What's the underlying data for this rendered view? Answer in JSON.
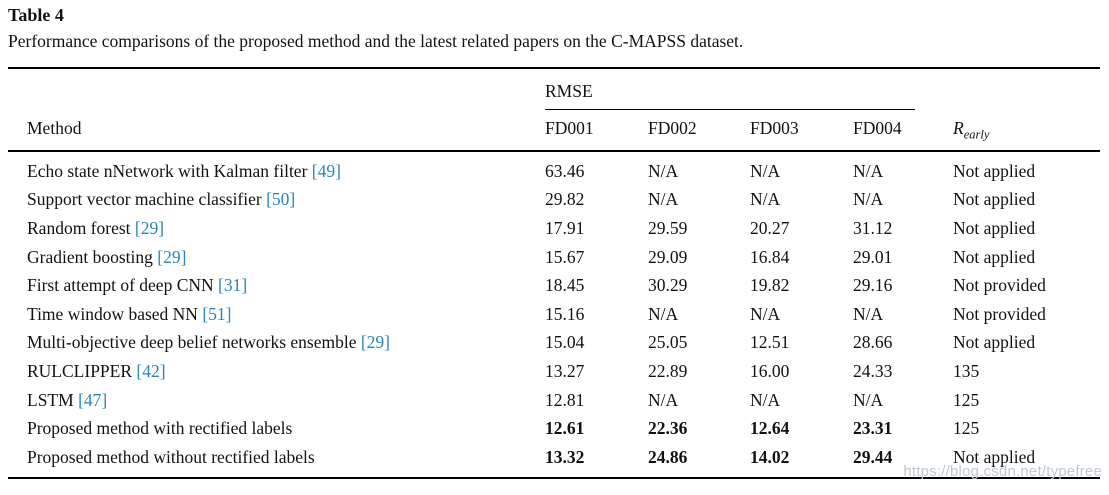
{
  "header": {
    "table_label": "Table 4",
    "caption": "Performance comparisons of the proposed method and the latest related papers on the C-MAPSS dataset."
  },
  "table": {
    "group_header": "RMSE",
    "method_header": "Method",
    "sub_headers": [
      "FD001",
      "FD002",
      "FD003",
      "FD004"
    ],
    "r_early_header": {
      "base": "R",
      "sub": "early"
    },
    "rows": [
      {
        "method": "Echo state nNetwork with Kalman filter",
        "ref": "[49]",
        "values": [
          "63.46",
          "N/A",
          "N/A",
          "N/A"
        ],
        "r_early": "Not applied",
        "bold": false
      },
      {
        "method": "Support vector machine classifier",
        "ref": "[50]",
        "values": [
          "29.82",
          "N/A",
          "N/A",
          "N/A"
        ],
        "r_early": "Not applied",
        "bold": false
      },
      {
        "method": "Random forest",
        "ref": "[29]",
        "values": [
          "17.91",
          "29.59",
          "20.27",
          "31.12"
        ],
        "r_early": "Not applied",
        "bold": false
      },
      {
        "method": "Gradient boosting",
        "ref": "[29]",
        "values": [
          "15.67",
          "29.09",
          "16.84",
          "29.01"
        ],
        "r_early": "Not applied",
        "bold": false
      },
      {
        "method": "First attempt of deep CNN",
        "ref": "[31]",
        "values": [
          "18.45",
          "30.29",
          "19.82",
          "29.16"
        ],
        "r_early": "Not provided",
        "bold": false
      },
      {
        "method": "Time window based NN",
        "ref": "[51]",
        "values": [
          "15.16",
          "N/A",
          "N/A",
          "N/A"
        ],
        "r_early": "Not provided",
        "bold": false
      },
      {
        "method": "Multi-objective deep belief networks ensemble",
        "ref": "[29]",
        "values": [
          "15.04",
          "25.05",
          "12.51",
          "28.66"
        ],
        "r_early": "Not applied",
        "bold": false
      },
      {
        "method": "RULCLIPPER",
        "ref": "[42]",
        "values": [
          "13.27",
          "22.89",
          "16.00",
          "24.33"
        ],
        "r_early": "135",
        "bold": false
      },
      {
        "method": "LSTM",
        "ref": "[47]",
        "values": [
          "12.81",
          "N/A",
          "N/A",
          "N/A"
        ],
        "r_early": "125",
        "bold": false
      },
      {
        "method": "Proposed method with rectified labels",
        "ref": "",
        "values": [
          "12.61",
          "22.36",
          "12.64",
          "23.31"
        ],
        "r_early": "125",
        "bold": true
      },
      {
        "method": "Proposed method without rectified labels",
        "ref": "",
        "values": [
          "13.32",
          "24.86",
          "14.02",
          "29.44"
        ],
        "r_early": "Not applied",
        "bold": true
      }
    ]
  },
  "colors": {
    "citation_link": "#2b83ba",
    "text": "#121212",
    "rule": "#000000",
    "watermark": "#bcc8d3"
  },
  "watermark": "https://blog.csdn.net/typefree"
}
